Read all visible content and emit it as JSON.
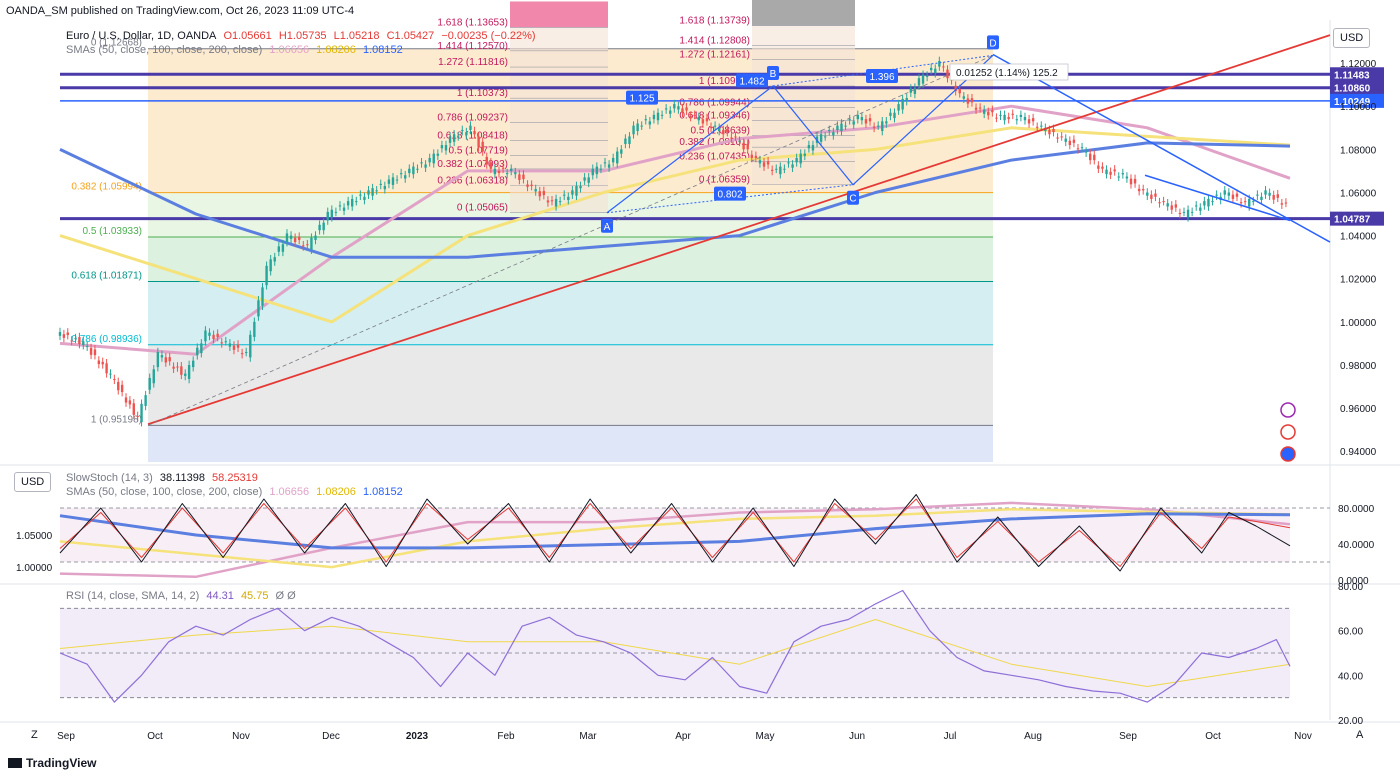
{
  "header": {
    "published": "OANDA_SM published on TradingView.com, Oct 26, 2023 11:09 UTC-4"
  },
  "legend": {
    "symbol": "Euro / U.S. Dollar, 1D, OANDA",
    "o": "O1.05661",
    "h": "H1.05735",
    "l": "L1.05218",
    "c": "C1.05427",
    "chg": "−0.00235 (−0.22%)",
    "sma_label": "SMAs (50, close, 100, close, 200, close)",
    "sma50": "1.06656",
    "sma100": "1.08206",
    "sma200": "1.08152"
  },
  "colors": {
    "sma50": "#e1a2c7",
    "sma100": "#f5e27a",
    "sma200": "#5b7fe0",
    "trend_red": "#e53935",
    "trend_blue": "#2962ff",
    "hline": "#4a3aa8",
    "stoch_k": "#131722",
    "stoch_d": "#e53935",
    "rsi": "#8e6fd8",
    "rsi_ma": "#f0d84a"
  },
  "currency_button": "USD",
  "price_axis": [
    "1.12000",
    "1.10000",
    "1.08000",
    "1.06000",
    "1.04000",
    "1.02000",
    "1.00000",
    "0.98000",
    "0.96000",
    "0.94000"
  ],
  "price_tags": [
    {
      "v": 1.11483,
      "label": "1.11483",
      "color": "#4a3aa8"
    },
    {
      "v": 1.1086,
      "label": "1.10860",
      "color": "#4a3aa8"
    },
    {
      "v": 1.10249,
      "label": "1.10249",
      "color": "#2962ff"
    },
    {
      "v": 1.04787,
      "label": "1.04787",
      "color": "#4a3aa8"
    }
  ],
  "fib_levels": [
    {
      "v": 1.12668,
      "label": "0 (1.12668)"
    },
    {
      "v": 1.05994,
      "label": "0.382 (1.05994)"
    },
    {
      "v": 1.03933,
      "label": "0.5 (1.03933)"
    },
    {
      "v": 1.01871,
      "label": "0.618 (1.01871)"
    },
    {
      "v": 0.98936,
      "label": "0.786 (0.98936)"
    },
    {
      "v": 0.95198,
      "label": "1 (0.95198)"
    }
  ],
  "fib_ext_a": [
    {
      "v": 1.13653,
      "label": "1.618 (1.13653)"
    },
    {
      "v": 1.1257,
      "label": "1.414 (1.12570)"
    },
    {
      "v": 1.11816,
      "label": "1.272 (1.11816)"
    },
    {
      "v": 1.10373,
      "label": "1 (1.10373)"
    },
    {
      "v": 1.09237,
      "label": "0.786 (1.09237)"
    },
    {
      "v": 1.08418,
      "label": "0.618 (1.08418)"
    },
    {
      "v": 1.07719,
      "label": "0.5 (1.07719)"
    },
    {
      "v": 1.07093,
      "label": "0.382 (1.07093)"
    },
    {
      "v": 1.06318,
      "label": "0.236 (1.06318)"
    },
    {
      "v": 1.05065,
      "label": "0 (1.05065)"
    }
  ],
  "fib_ext_b": [
    {
      "v": 1.13739,
      "label": "1.618 (1.13739)"
    },
    {
      "v": 1.12808,
      "label": "1.414 (1.12808)"
    },
    {
      "v": 1.12161,
      "label": "1.272 (1.12161)"
    },
    {
      "v": 1.10938,
      "label": "1 (1.10938)"
    },
    {
      "v": 1.09944,
      "label": "0.786 (1.09944)"
    },
    {
      "v": 1.09346,
      "label": "0.618 (1.09346)"
    },
    {
      "v": 1.08639,
      "label": "0.5 (1.08639)"
    },
    {
      "v": 1.08101,
      "label": "0.382 (1.08101)"
    },
    {
      "v": 1.07435,
      "label": "0.236 (1.07435)"
    },
    {
      "v": 1.06359,
      "label": "0 (1.06359)"
    }
  ],
  "abcd": {
    "points": [
      "A",
      "B",
      "C",
      "D"
    ],
    "ratios": [
      "1.125",
      "1.482",
      "1.396",
      "0.802"
    ],
    "measure": "0.01252 (1.14%) 125.2"
  },
  "stoch": {
    "label": "SlowStoch (14, 3)",
    "k": "38.11398",
    "d": "58.25319",
    "axis": [
      "80.0000",
      "40.0000",
      "0.0000"
    ],
    "left_axis": [
      "1.05000",
      "1.00000"
    ],
    "sma_label": "SMAs (50, close, 100, close, 200, close)",
    "s50": "1.06656",
    "s100": "1.08206",
    "s200": "1.08152"
  },
  "rsi": {
    "label": "RSI (14, close, SMA, 14, 2)",
    "value": "44.31",
    "ma": "45.75",
    "extra": "Ø Ø",
    "axis": [
      "80.00",
      "60.00",
      "40.00",
      "20.00"
    ]
  },
  "time_axis": [
    "Sep",
    "Oct",
    "Nov",
    "Dec",
    "2023",
    "Feb",
    "Mar",
    "Apr",
    "May",
    "Jun",
    "Jul",
    "Aug",
    "Sep",
    "Oct",
    "Nov"
  ],
  "footer": {
    "brand": "TradingView",
    "z": "Z",
    "a": "A"
  },
  "chart_data": {
    "type": "candlestick",
    "title": "Euro / U.S. Dollar, 1D, OANDA",
    "x_range": [
      "Sep 2022",
      "Nov 2023"
    ],
    "ylim": [
      0.935,
      1.14
    ],
    "close_path": [
      [
        0,
        0.995
      ],
      [
        20,
        0.99
      ],
      [
        40,
        0.975
      ],
      [
        60,
        0.955
      ],
      [
        75,
        0.985
      ],
      [
        95,
        0.975
      ],
      [
        110,
        0.995
      ],
      [
        125,
        0.99
      ],
      [
        140,
        0.985
      ],
      [
        155,
        1.025
      ],
      [
        170,
        1.04
      ],
      [
        185,
        1.035
      ],
      [
        200,
        1.05
      ],
      [
        215,
        1.055
      ],
      [
        230,
        1.06
      ],
      [
        245,
        1.065
      ],
      [
        260,
        1.07
      ],
      [
        275,
        1.075
      ],
      [
        290,
        1.085
      ],
      [
        305,
        1.09
      ],
      [
        320,
        1.07
      ],
      [
        335,
        1.07
      ],
      [
        350,
        1.062
      ],
      [
        365,
        1.055
      ],
      [
        380,
        1.06
      ],
      [
        395,
        1.07
      ],
      [
        410,
        1.075
      ],
      [
        425,
        1.09
      ],
      [
        440,
        1.095
      ],
      [
        455,
        1.1
      ],
      [
        470,
        1.095
      ],
      [
        485,
        1.09
      ],
      [
        500,
        1.085
      ],
      [
        515,
        1.075
      ],
      [
        530,
        1.07
      ],
      [
        545,
        1.075
      ],
      [
        560,
        1.085
      ],
      [
        575,
        1.09
      ],
      [
        590,
        1.095
      ],
      [
        605,
        1.09
      ],
      [
        620,
        1.1
      ],
      [
        635,
        1.112
      ],
      [
        650,
        1.12
      ],
      [
        665,
        1.105
      ],
      [
        680,
        1.098
      ],
      [
        695,
        1.095
      ],
      [
        710,
        1.095
      ],
      [
        725,
        1.09
      ],
      [
        740,
        1.085
      ],
      [
        755,
        1.08
      ],
      [
        770,
        1.07
      ],
      [
        785,
        1.068
      ],
      [
        800,
        1.06
      ],
      [
        815,
        1.055
      ],
      [
        830,
        1.05
      ],
      [
        845,
        1.055
      ],
      [
        860,
        1.06
      ],
      [
        875,
        1.055
      ],
      [
        890,
        1.06
      ],
      [
        905,
        1.0542
      ]
    ],
    "sma50": [
      [
        0,
        0.99
      ],
      [
        100,
        0.985
      ],
      [
        200,
        1.03
      ],
      [
        300,
        1.07
      ],
      [
        400,
        1.07
      ],
      [
        500,
        1.085
      ],
      [
        600,
        1.09
      ],
      [
        700,
        1.1
      ],
      [
        800,
        1.09
      ],
      [
        905,
        1.0666
      ]
    ],
    "sma100": [
      [
        0,
        1.04
      ],
      [
        100,
        1.02
      ],
      [
        200,
        1.0
      ],
      [
        300,
        1.04
      ],
      [
        400,
        1.06
      ],
      [
        500,
        1.075
      ],
      [
        600,
        1.08
      ],
      [
        700,
        1.09
      ],
      [
        800,
        1.086
      ],
      [
        905,
        1.082
      ]
    ],
    "sma200": [
      [
        0,
        1.08
      ],
      [
        100,
        1.05
      ],
      [
        200,
        1.03
      ],
      [
        300,
        1.03
      ],
      [
        400,
        1.035
      ],
      [
        500,
        1.04
      ],
      [
        600,
        1.06
      ],
      [
        700,
        1.075
      ],
      [
        800,
        1.083
      ],
      [
        905,
        1.0815
      ]
    ],
    "stoch_k": [
      [
        0,
        30
      ],
      [
        30,
        80
      ],
      [
        60,
        20
      ],
      [
        90,
        85
      ],
      [
        120,
        25
      ],
      [
        150,
        90
      ],
      [
        180,
        30
      ],
      [
        210,
        85
      ],
      [
        240,
        15
      ],
      [
        270,
        90
      ],
      [
        300,
        40
      ],
      [
        330,
        85
      ],
      [
        360,
        20
      ],
      [
        390,
        90
      ],
      [
        420,
        30
      ],
      [
        450,
        85
      ],
      [
        480,
        20
      ],
      [
        510,
        80
      ],
      [
        540,
        15
      ],
      [
        570,
        90
      ],
      [
        600,
        40
      ],
      [
        630,
        95
      ],
      [
        660,
        20
      ],
      [
        690,
        70
      ],
      [
        720,
        15
      ],
      [
        750,
        60
      ],
      [
        780,
        10
      ],
      [
        810,
        80
      ],
      [
        840,
        30
      ],
      [
        860,
        75
      ],
      [
        880,
        60
      ],
      [
        905,
        38
      ]
    ],
    "stoch_d": [
      [
        0,
        35
      ],
      [
        30,
        75
      ],
      [
        60,
        25
      ],
      [
        90,
        80
      ],
      [
        120,
        30
      ],
      [
        150,
        85
      ],
      [
        180,
        35
      ],
      [
        210,
        80
      ],
      [
        240,
        20
      ],
      [
        270,
        85
      ],
      [
        300,
        45
      ],
      [
        330,
        80
      ],
      [
        360,
        25
      ],
      [
        390,
        85
      ],
      [
        420,
        35
      ],
      [
        450,
        80
      ],
      [
        480,
        25
      ],
      [
        510,
        75
      ],
      [
        540,
        20
      ],
      [
        570,
        85
      ],
      [
        600,
        45
      ],
      [
        630,
        90
      ],
      [
        660,
        25
      ],
      [
        690,
        65
      ],
      [
        720,
        20
      ],
      [
        750,
        55
      ],
      [
        780,
        15
      ],
      [
        810,
        75
      ],
      [
        840,
        35
      ],
      [
        860,
        70
      ],
      [
        880,
        65
      ],
      [
        905,
        58
      ]
    ],
    "rsi": [
      [
        0,
        50
      ],
      [
        20,
        45
      ],
      [
        40,
        28
      ],
      [
        60,
        40
      ],
      [
        80,
        55
      ],
      [
        100,
        62
      ],
      [
        120,
        58
      ],
      [
        140,
        65
      ],
      [
        160,
        70
      ],
      [
        180,
        60
      ],
      [
        200,
        66
      ],
      [
        220,
        62
      ],
      [
        240,
        55
      ],
      [
        260,
        48
      ],
      [
        280,
        35
      ],
      [
        300,
        50
      ],
      [
        320,
        40
      ],
      [
        340,
        62
      ],
      [
        360,
        66
      ],
      [
        380,
        58
      ],
      [
        400,
        55
      ],
      [
        420,
        50
      ],
      [
        440,
        40
      ],
      [
        460,
        38
      ],
      [
        480,
        48
      ],
      [
        500,
        35
      ],
      [
        520,
        32
      ],
      [
        540,
        55
      ],
      [
        560,
        62
      ],
      [
        580,
        65
      ],
      [
        600,
        72
      ],
      [
        620,
        78
      ],
      [
        640,
        60
      ],
      [
        660,
        48
      ],
      [
        680,
        42
      ],
      [
        700,
        40
      ],
      [
        720,
        38
      ],
      [
        740,
        35
      ],
      [
        760,
        33
      ],
      [
        780,
        32
      ],
      [
        800,
        28
      ],
      [
        820,
        36
      ],
      [
        840,
        50
      ],
      [
        860,
        48
      ],
      [
        880,
        52
      ],
      [
        895,
        56
      ],
      [
        905,
        44
      ]
    ],
    "rsi_ma": [
      [
        0,
        52
      ],
      [
        100,
        58
      ],
      [
        200,
        62
      ],
      [
        300,
        55
      ],
      [
        400,
        55
      ],
      [
        500,
        45
      ],
      [
        600,
        65
      ],
      [
        700,
        45
      ],
      [
        800,
        35
      ],
      [
        905,
        45
      ]
    ]
  }
}
